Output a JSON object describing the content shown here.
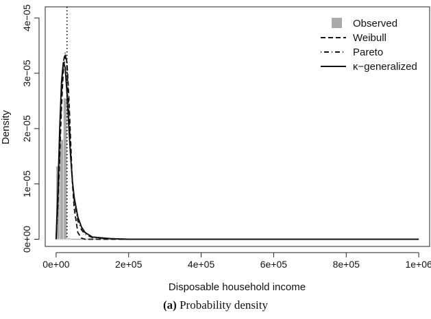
{
  "caption": {
    "letter": "(a)",
    "text": "Probability density"
  },
  "chart_data": {
    "type": "line",
    "xlabel": "Disposable household income",
    "ylabel": "Density",
    "xlim": [
      -30000,
      1030000
    ],
    "ylim": [
      -1.3e-06,
      4.2e-05
    ],
    "x_ticks": [
      0,
      200000,
      400000,
      600000,
      800000,
      1000000
    ],
    "x_tick_labels": [
      "0e+00",
      "2e+05",
      "4e+05",
      "6e+05",
      "8e+05",
      "1e+06"
    ],
    "y_ticks": [
      0,
      1e-05,
      2e-05,
      3e-05,
      4e-05
    ],
    "y_tick_labels": [
      "0e+00",
      "1e−05",
      "2e−05",
      "3e−05",
      "4e−05"
    ],
    "grid": false,
    "legend_position": "top-right",
    "legend": [
      {
        "name": "Observed",
        "style": "grey-square"
      },
      {
        "name": "Weibull",
        "style": "dashed"
      },
      {
        "name": "Pareto",
        "style": "dotdash"
      },
      {
        "name": "κ−generalized",
        "style": "solid"
      }
    ],
    "histogram": {
      "name": "Observed",
      "color": "#aaaaaa",
      "bins": [
        {
          "x0": 0,
          "x1": 10000,
          "density": 1.32e-05
        },
        {
          "x0": 10000,
          "x1": 20000,
          "density": 1.8e-05
        },
        {
          "x0": 20000,
          "x1": 30000,
          "density": 2.55e-05
        },
        {
          "x0": 30000,
          "x1": 40000,
          "density": 2e-07
        }
      ],
      "baseline_extent": [
        0,
        830000
      ]
    },
    "series": [
      {
        "name": "Weibull",
        "style": "dashed",
        "x": [
          0,
          5000,
          10000,
          15000,
          20000,
          25000,
          30000,
          35000,
          40000,
          45000,
          50000,
          60000,
          70000,
          80000,
          100000,
          150000,
          200000,
          400000,
          600000,
          800000,
          1000000
        ],
        "y": [
          0,
          6e-06,
          1.5e-05,
          2.4e-05,
          3.05e-05,
          3.33e-05,
          3.2e-05,
          2.6e-05,
          1.8e-05,
          1e-05,
          5.5e-06,
          1.2e-06,
          2e-07,
          0,
          0,
          0,
          0,
          0,
          0,
          0,
          0
        ]
      },
      {
        "name": "Pareto",
        "style": "dotdash",
        "x": [
          0,
          5000,
          10000,
          15000,
          20000,
          25000,
          30000,
          35000,
          40000,
          45000,
          50000,
          60000,
          70000,
          80000,
          100000,
          150000,
          200000,
          400000,
          600000,
          800000,
          1000000
        ],
        "y": [
          0,
          7e-06,
          1.7e-05,
          2.65e-05,
          3.2e-05,
          3.38e-05,
          3.1e-05,
          2.35e-05,
          1.6e-05,
          1.05e-05,
          7e-06,
          3.3e-06,
          1.7e-06,
          9e-07,
          3e-07,
          1e-07,
          0,
          0,
          0,
          0,
          0
        ]
      },
      {
        "name": "κ−generalized",
        "style": "solid",
        "x": [
          0,
          5000,
          10000,
          15000,
          20000,
          25000,
          30000,
          35000,
          40000,
          45000,
          50000,
          60000,
          70000,
          80000,
          100000,
          150000,
          200000,
          400000,
          600000,
          800000,
          1000000
        ],
        "y": [
          0,
          9e-06,
          2e-05,
          2.85e-05,
          3.2e-05,
          3.1e-05,
          2.65e-05,
          2.05e-05,
          1.5e-05,
          1.05e-05,
          7.5e-06,
          4e-06,
          2.2e-06,
          1.2e-06,
          4e-07,
          1e-07,
          0,
          0,
          0,
          0,
          0
        ]
      }
    ],
    "vertical_line": {
      "name": "Pareto",
      "style": "dotted",
      "x": 30000
    }
  }
}
